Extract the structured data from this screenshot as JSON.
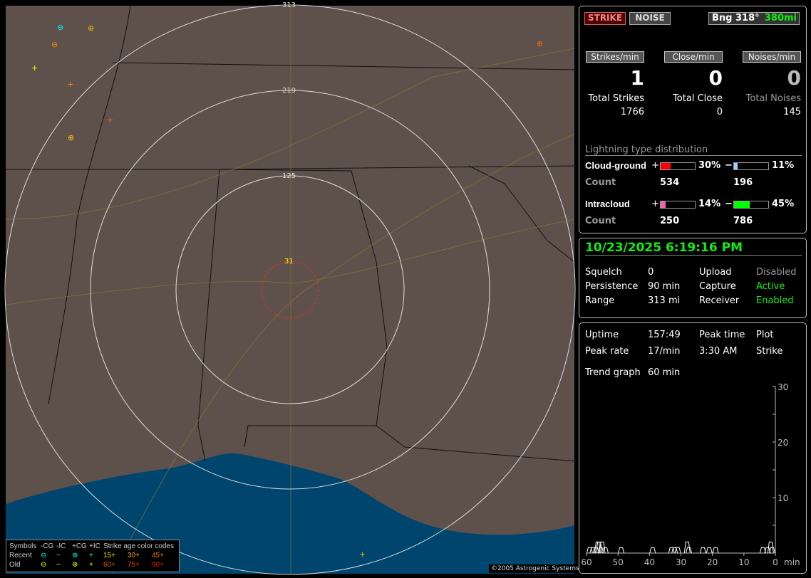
{
  "map": {
    "ring_labels": [
      "313",
      "219",
      "125",
      "31"
    ],
    "copyright": "©2005 Astrogenic Systems",
    "legend": {
      "header": [
        "Symbols",
        "-CG",
        "-IC",
        "+CG",
        "+IC",
        "Strike age color codes"
      ],
      "recent": {
        "label": "Recent",
        "symbols": [
          "⊖",
          "−",
          "⊕",
          "+"
        ],
        "ages": [
          "15+",
          "30+",
          "45+"
        ]
      },
      "old": {
        "label": "Old",
        "symbols": [
          "⊖",
          "−",
          "⊕",
          "+"
        ],
        "ages": [
          "60+",
          "75+",
          "90+"
        ]
      },
      "age_colors": [
        "#ffd000",
        "#ffa000",
        "#e08000",
        "#d06000",
        "#e04000",
        "#e02000"
      ]
    }
  },
  "status": {
    "strike_button": "STRIKE",
    "noise_button": "NOISE",
    "bearing": "Bng 318°",
    "distance": "380mi",
    "strikes_min_label": "Strikes/min",
    "close_min_label": "Close/min",
    "noises_min_label": "Noises/min",
    "strikes_min": "1",
    "close_min": "0",
    "noises_min": "0",
    "total_strikes_label": "Total Strikes",
    "total_close_label": "Total Close",
    "total_noises_label": "Total Noises",
    "total_strikes": "1766",
    "total_close": "0",
    "total_noises": "145"
  },
  "distribution": {
    "title": "Lightning type distribution",
    "cg": {
      "label": "Cloud-ground",
      "plus_pct": 30,
      "minus_pct": 11,
      "plus_text": "30%",
      "minus_text": "11%",
      "count_label": "Count",
      "plus_count": "534",
      "minus_count": "196",
      "plus_color": "#ff0000",
      "minus_color": "#a0d0ff"
    },
    "ic": {
      "label": "Intracloud",
      "plus_pct": 14,
      "minus_pct": 45,
      "plus_text": "14%",
      "minus_text": "45%",
      "count_label": "Count",
      "plus_count": "250",
      "minus_count": "786",
      "plus_color": "#f060b0",
      "minus_color": "#00ff00"
    },
    "plus": "+",
    "minus": "−"
  },
  "info": {
    "datetime": "10/23/2025 6:19:16 PM",
    "rows": [
      [
        "Squelch",
        "0",
        "Upload",
        "Disabled"
      ],
      [
        "Persistence",
        "90 min",
        "Capture",
        "Active"
      ],
      [
        "Range",
        "313 mi",
        "Receiver",
        "Enabled"
      ]
    ]
  },
  "stats": {
    "uptime_label": "Uptime",
    "uptime": "157:49",
    "peak_time_label": "Peak time",
    "plot_label": "Plot",
    "peak_rate_label": "Peak rate",
    "peak_rate": "17/min",
    "peak_time": "3:30 AM",
    "plot": "Strike",
    "trend_label": "Trend graph",
    "trend": "60 min"
  },
  "chart_data": {
    "type": "line",
    "xlabel": "min",
    "x_ticks": [
      "60",
      "50",
      "40",
      "30",
      "20",
      "10",
      "0"
    ],
    "y_ticks": [
      "10",
      "20",
      "30"
    ],
    "xlim": [
      60,
      0
    ],
    "ylim": [
      0,
      30
    ],
    "x": [
      59,
      58,
      57,
      56.5,
      56,
      55.5,
      55,
      54,
      49,
      39,
      33,
      32,
      31,
      28,
      27.5,
      23,
      21,
      19,
      4,
      2.5,
      1.5,
      1
    ],
    "values": [
      1,
      1,
      1,
      2,
      2,
      1,
      2,
      1,
      1,
      1,
      1,
      1,
      1,
      2,
      1,
      1,
      1,
      1,
      1,
      1,
      2,
      1
    ]
  }
}
